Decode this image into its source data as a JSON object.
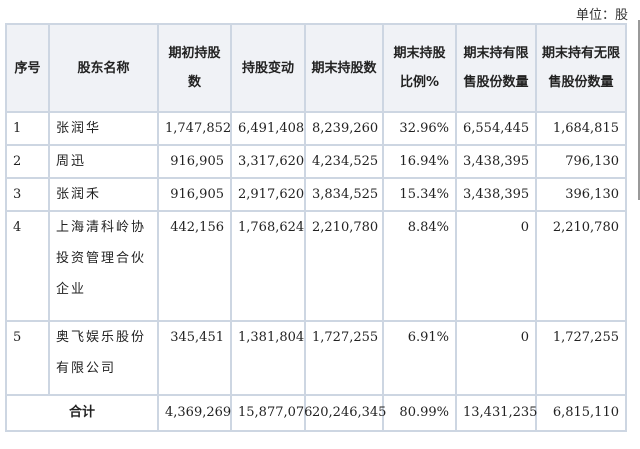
{
  "unit_label": "单位：股",
  "table": {
    "headers": [
      "序号",
      "股东名称",
      "期初持股数",
      "持股变动",
      "期末持股数",
      "期末持股比例%",
      "期末持有限售股份数量",
      "期末持有无限售股份数量"
    ],
    "rows": [
      {
        "no": "1",
        "name": "张润华",
        "start": "1,747,852",
        "change": "6,491,408",
        "end": "8,239,260",
        "ratio": "32.96%",
        "restricted": "6,554,445",
        "unrestricted": "1,684,815"
      },
      {
        "no": "2",
        "name": "周迅",
        "start": "916,905",
        "change": "3,317,620",
        "end": "4,234,525",
        "ratio": "16.94%",
        "restricted": "3,438,395",
        "unrestricted": "796,130"
      },
      {
        "no": "3",
        "name": "张润禾",
        "start": "916,905",
        "change": "2,917,620",
        "end": "3,834,525",
        "ratio": "15.34%",
        "restricted": "3,438,395",
        "unrestricted": "396,130"
      },
      {
        "no": "4",
        "name": "上海清科岭协投资管理合伙企业",
        "start": "442,156",
        "change": "1,768,624",
        "end": "2,210,780",
        "ratio": "8.84%",
        "restricted": "0",
        "unrestricted": "2,210,780"
      },
      {
        "no": "5",
        "name": "奥飞娱乐股份有限公司",
        "start": "345,451",
        "change": "1,381,804",
        "end": "1,727,255",
        "ratio": "6.91%",
        "restricted": "0",
        "unrestricted": "1,727,255"
      }
    ],
    "total": {
      "label": "合计",
      "start": "4,369,269",
      "change": "15,877,076",
      "end": "20,246,345",
      "ratio": "80.99%",
      "restricted": "13,431,235",
      "unrestricted": "6,815,110"
    }
  }
}
